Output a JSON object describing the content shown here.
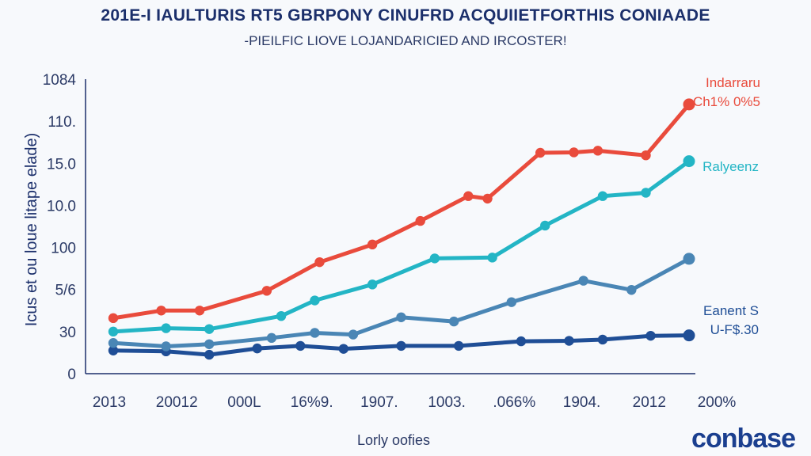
{
  "header": {
    "title": "201E-I IAULTURIS RT5 GBRPONY CINUFRD ACQUIIETFORTHIS CONIAADE",
    "subtitle": "-PIEILFIC LIOVE LOJANDARICIED AND IRCOSTER!"
  },
  "logo": {
    "text": "conbase"
  },
  "chart_data": {
    "type": "line",
    "title": "201E-I IAULTURIS RT5 GBRPONY CINUFRD ACQUIIETFORTHIS CONIAADE",
    "subtitle": "-PIEILFIC LIOVE LOJANDARICIED AND IRCOSTER!",
    "xlabel": "Lorly oofies",
    "ylabel": "Icus et ou loue litape elade)",
    "x_tick_labels": [
      "2013",
      "20012",
      "000L",
      "16%9.",
      "1907.",
      "1003.",
      ".066%",
      "1904.",
      "2012",
      "200%"
    ],
    "y_tick_labels": [
      "0",
      "30",
      "5/6",
      "100",
      "10.0",
      "15.0",
      "110.",
      "1084"
    ],
    "ylim": [
      0,
      7
    ],
    "grid": false,
    "x": [
      0,
      0.28,
      0.57,
      0.85,
      1.13,
      1.42,
      1.7,
      2.0,
      2.27,
      2.55,
      2.83,
      3.12,
      3.4,
      3.7,
      3.97,
      4.25,
      4.55,
      4.8,
      5.1,
      5.42,
      5.73,
      6.0,
      6.4,
      7.0
    ],
    "series": [
      {
        "name": "Indarraru",
        "color": "#e94b3c",
        "label_lines": [
          "Indarraru",
          "Ch1% 0%5"
        ],
        "values": [
          1.32,
          1.5,
          1.5,
          1.97,
          2.65,
          3.07,
          3.63,
          4.22,
          4.16,
          5.25,
          5.26,
          5.3,
          5.19,
          6.4
        ],
        "x": [
          0,
          0.5,
          0.9,
          1.6,
          2.15,
          2.7,
          3.2,
          3.7,
          3.9,
          4.45,
          4.8,
          5.05,
          5.55,
          6.0
        ]
      },
      {
        "name": "Ralyeenz",
        "color": "#23b5c5",
        "label_lines": [
          "Ralyeenz"
        ],
        "values": [
          1.0,
          1.08,
          1.06,
          1.37,
          1.74,
          2.12,
          2.74,
          2.76,
          3.52,
          4.22,
          4.3,
          5.05
        ],
        "x": [
          0,
          0.55,
          1.0,
          1.75,
          2.1,
          2.7,
          3.35,
          3.95,
          4.5,
          5.1,
          5.55,
          6.0
        ]
      },
      {
        "name": "Eanent S",
        "color": "#4a86b5",
        "label_lines": [
          "Eanent S",
          "U-F$.30"
        ],
        "values": [
          0.73,
          0.65,
          0.7,
          0.85,
          0.97,
          0.93,
          1.34,
          1.24,
          1.7,
          2.21,
          1.99,
          2.73
        ],
        "x": [
          0,
          0.55,
          1.0,
          1.65,
          2.1,
          2.5,
          3.0,
          3.55,
          4.15,
          4.9,
          5.4,
          6.0
        ]
      },
      {
        "name": "",
        "color": "#1f4e96",
        "label_lines": [],
        "values": [
          0.55,
          0.53,
          0.45,
          0.6,
          0.66,
          0.59,
          0.66,
          0.66,
          0.77,
          0.78,
          0.81,
          0.9,
          0.91
        ],
        "x": [
          0,
          0.55,
          1.0,
          1.5,
          1.95,
          2.4,
          3.0,
          3.6,
          4.25,
          4.75,
          5.1,
          5.6,
          6.0
        ]
      }
    ]
  }
}
